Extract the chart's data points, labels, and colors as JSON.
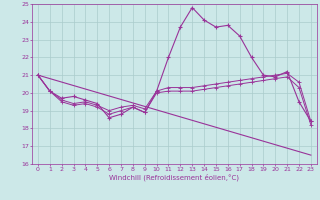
{
  "background_color": "#cce8e8",
  "grid_color": "#aacccc",
  "line_color": "#993399",
  "xlim": [
    -0.5,
    23.5
  ],
  "ylim": [
    16,
    25
  ],
  "xticks": [
    0,
    1,
    2,
    3,
    4,
    5,
    6,
    7,
    8,
    9,
    10,
    11,
    12,
    13,
    14,
    15,
    16,
    17,
    18,
    19,
    20,
    21,
    22,
    23
  ],
  "yticks": [
    16,
    17,
    18,
    19,
    20,
    21,
    22,
    23,
    24,
    25
  ],
  "xlabel": "Windchill (Refroidissement éolien,°C)",
  "series1_main": {
    "x": [
      0,
      1,
      2,
      3,
      4,
      5,
      6,
      7,
      8,
      9,
      10,
      11,
      12,
      13,
      14,
      15,
      16,
      17,
      18,
      19,
      20,
      21,
      22,
      23
    ],
    "y": [
      21.0,
      20.1,
      19.7,
      19.8,
      19.6,
      19.4,
      18.6,
      18.8,
      19.2,
      18.9,
      20.1,
      22.0,
      23.7,
      24.8,
      24.1,
      23.7,
      23.8,
      23.2,
      22.0,
      21.0,
      20.9,
      21.2,
      19.5,
      18.4
    ]
  },
  "series2_upper": {
    "x": [
      0,
      1,
      2,
      3,
      4,
      5,
      6,
      7,
      8,
      9,
      10,
      11,
      12,
      13,
      14,
      15,
      16,
      17,
      18,
      19,
      20,
      21,
      22,
      23
    ],
    "y": [
      21.0,
      20.1,
      19.6,
      19.4,
      19.5,
      19.3,
      19.0,
      19.2,
      19.3,
      19.1,
      20.1,
      20.3,
      20.3,
      20.3,
      20.4,
      20.5,
      20.6,
      20.7,
      20.8,
      20.9,
      21.0,
      21.1,
      20.6,
      18.4
    ]
  },
  "series3_lower": {
    "x": [
      0,
      1,
      2,
      3,
      4,
      5,
      6,
      7,
      8,
      9,
      10,
      11,
      12,
      13,
      14,
      15,
      16,
      17,
      18,
      19,
      20,
      21,
      22,
      23
    ],
    "y": [
      21.0,
      20.1,
      19.5,
      19.3,
      19.4,
      19.2,
      18.8,
      19.0,
      19.2,
      18.9,
      20.0,
      20.1,
      20.1,
      20.1,
      20.2,
      20.3,
      20.4,
      20.5,
      20.6,
      20.7,
      20.8,
      20.9,
      20.3,
      18.2
    ]
  },
  "series4_diagonal": {
    "x": [
      0,
      23
    ],
    "y": [
      21.0,
      16.5
    ]
  }
}
